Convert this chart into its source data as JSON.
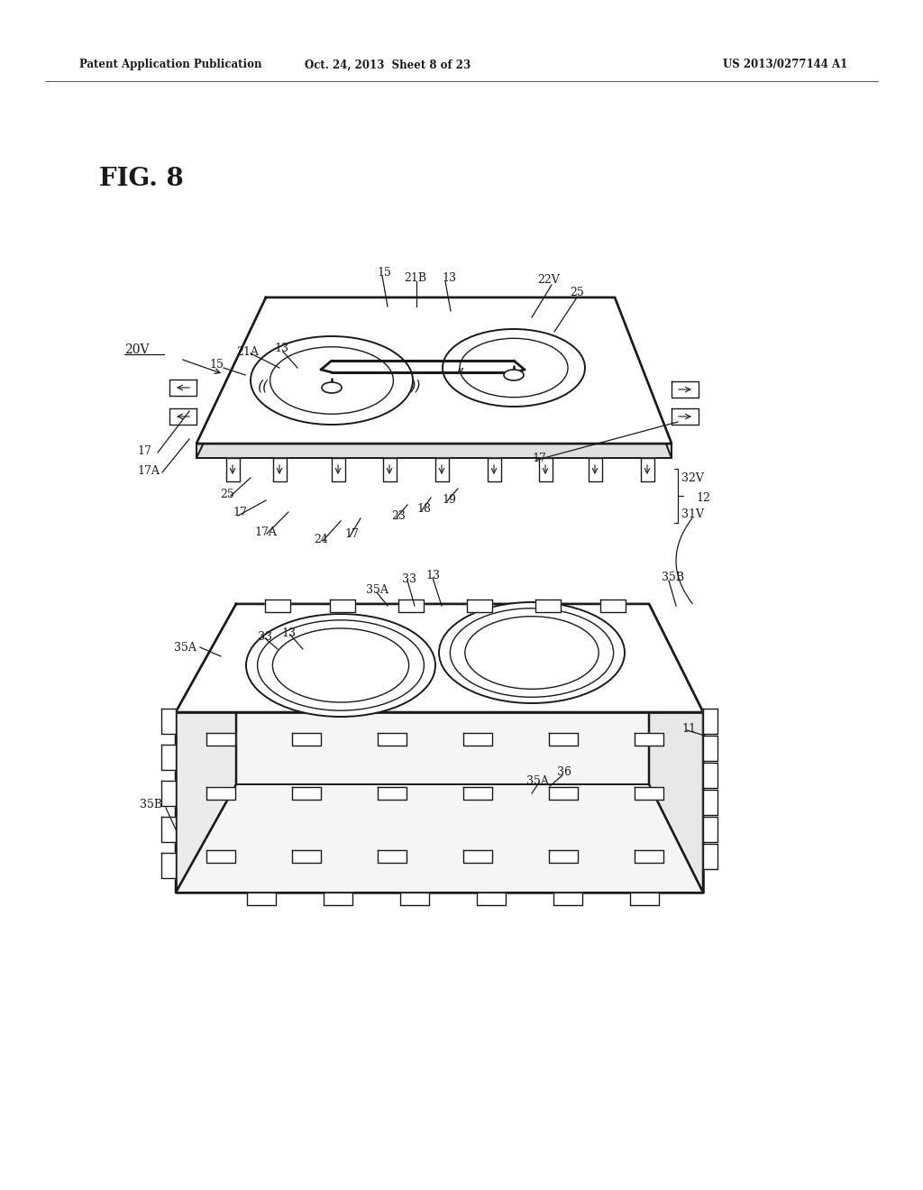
{
  "bg_color": "#ffffff",
  "line_color": "#1a1a1a",
  "header_left": "Patent Application Publication",
  "header_mid": "Oct. 24, 2013  Sheet 8 of 23",
  "header_right": "US 2013/0277144 A1",
  "fig_label": "FIG. 8"
}
